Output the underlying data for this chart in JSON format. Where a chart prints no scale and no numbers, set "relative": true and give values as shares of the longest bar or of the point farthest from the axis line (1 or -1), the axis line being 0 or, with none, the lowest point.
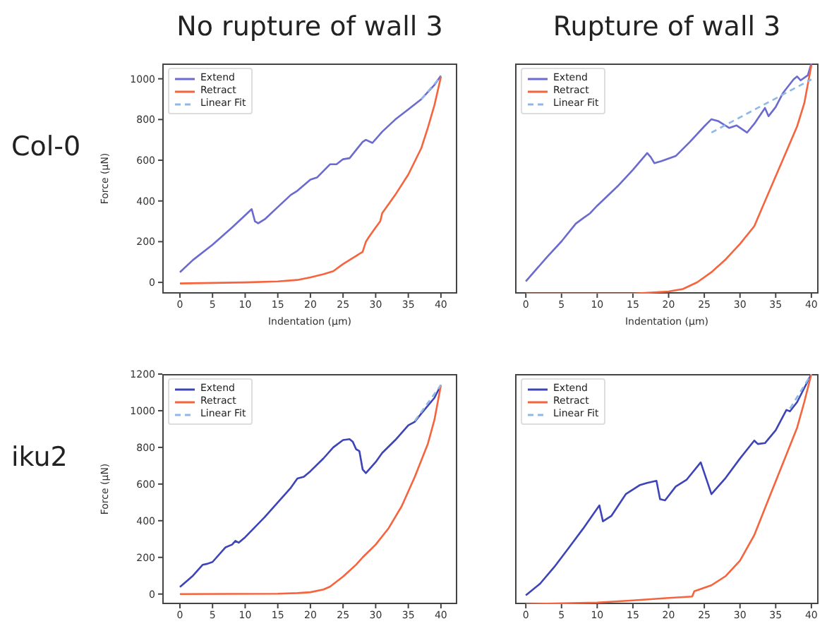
{
  "chart_data": [
    {
      "type": "line",
      "title": "No rupture of wall 3",
      "annotations": [
        "Col-0"
      ],
      "xlabel": "Indentation (μm)",
      "ylabel": "Force (μN)",
      "xlim": [
        -2.7,
        42.5
      ],
      "xticks": [
        0,
        5,
        10,
        15,
        20,
        25,
        30,
        35,
        40
      ],
      "ylim": [
        -55,
        1075
      ],
      "yticks": [
        0,
        200,
        400,
        600,
        800,
        1000
      ],
      "legend": "top left",
      "series": [
        {
          "name": "Extend",
          "color": "#6a6ad0",
          "line_style": "solid",
          "x": [
            0,
            2,
            5,
            8,
            10,
            11,
            11.5,
            12,
            13,
            15,
            17,
            18,
            20,
            21,
            23,
            24,
            25,
            26,
            28,
            28.5,
            29.5,
            31,
            33,
            35,
            37,
            39,
            40
          ],
          "values": [
            50,
            110,
            185,
            270,
            330,
            360,
            300,
            290,
            310,
            370,
            430,
            450,
            505,
            515,
            580,
            580,
            605,
            610,
            690,
            700,
            685,
            740,
            800,
            850,
            900,
            970,
            1015
          ]
        },
        {
          "name": "Retract",
          "color": "#f5643c",
          "line_style": "solid",
          "x": [
            0,
            10,
            15,
            18,
            20,
            22,
            23.5,
            25,
            27,
            28,
            28.5,
            29,
            30,
            30.7,
            31,
            33,
            35,
            37,
            38,
            39,
            40
          ],
          "values": [
            -5,
            0,
            5,
            12,
            25,
            40,
            55,
            90,
            130,
            150,
            200,
            225,
            270,
            300,
            340,
            430,
            530,
            660,
            760,
            870,
            1010
          ]
        },
        {
          "name": "Linear Fit",
          "color": "#8fb8e8",
          "line_style": "dashed",
          "x": [
            37,
            40
          ],
          "values": [
            900,
            1012
          ]
        }
      ]
    },
    {
      "type": "line",
      "title": "Rupture of wall 3",
      "xlabel": "Indentation (μm)",
      "relative": true,
      "xlim": [
        -1.5,
        41
      ],
      "xticks": [
        0,
        5,
        10,
        15,
        20,
        25,
        30,
        35,
        40
      ],
      "legend": "top left",
      "series": [
        {
          "name": "Extend",
          "color": "#6a6ad0",
          "line_style": "solid",
          "x": [
            0,
            3,
            5,
            7,
            8,
            9,
            10,
            13,
            15,
            17,
            17.5,
            18,
            19,
            21,
            23,
            25,
            26,
            27,
            28.5,
            29.5,
            31,
            32,
            33.5,
            34,
            35,
            36,
            37.5,
            38,
            38.5,
            39.5,
            40
          ],
          "values": [
            0.053,
            0.16,
            0.227,
            0.304,
            0.327,
            0.349,
            0.382,
            0.471,
            0.538,
            0.611,
            0.593,
            0.567,
            0.576,
            0.598,
            0.66,
            0.727,
            0.758,
            0.749,
            0.72,
            0.731,
            0.7,
            0.738,
            0.807,
            0.771,
            0.811,
            0.871,
            0.931,
            0.944,
            0.927,
            0.949,
            1
          ]
        },
        {
          "name": "Retract",
          "color": "#f5643c",
          "line_style": "solid",
          "x": [
            0,
            15,
            20,
            22,
            24,
            26,
            28,
            30,
            32,
            34,
            36,
            38,
            39,
            40
          ],
          "values": [
            0,
            0,
            0.009,
            0.02,
            0.049,
            0.093,
            0.149,
            0.216,
            0.293,
            0.438,
            0.582,
            0.727,
            0.827,
            0.993
          ]
        },
        {
          "name": "Linear Fit",
          "color": "#8fb8e8",
          "line_style": "dashed",
          "x": [
            26,
            40
          ],
          "values": [
            0.7,
            0.931
          ]
        }
      ]
    },
    {
      "type": "line",
      "annotations": [
        "iku2"
      ],
      "ylabel": "Force (μN)",
      "xlim": [
        -2.7,
        42.5
      ],
      "xticks": [
        0,
        5,
        10,
        15,
        20,
        25,
        30,
        35,
        40
      ],
      "ylim": [
        -55,
        1200
      ],
      "yticks": [
        0,
        200,
        400,
        600,
        800,
        1000,
        1200
      ],
      "legend": "top left",
      "series": [
        {
          "name": "Extend",
          "color": "#3c44b8",
          "line_style": "solid",
          "x": [
            0,
            2,
            3.5,
            4.2,
            5,
            7,
            8,
            8.5,
            9,
            10,
            13,
            15,
            17,
            18,
            19,
            20,
            22,
            23.5,
            25,
            26,
            26.5,
            27,
            27.5,
            28,
            28.5,
            30,
            31,
            33,
            35,
            36,
            37,
            39,
            40
          ],
          "values": [
            38,
            100,
            160,
            165,
            175,
            255,
            270,
            290,
            280,
            310,
            420,
            500,
            580,
            630,
            640,
            670,
            740,
            800,
            840,
            845,
            830,
            790,
            780,
            680,
            660,
            720,
            770,
            840,
            920,
            940,
            985,
            1070,
            1140
          ]
        },
        {
          "name": "Retract",
          "color": "#f5643c",
          "line_style": "solid",
          "x": [
            0,
            15,
            18,
            20,
            22,
            23,
            25,
            27,
            28,
            30,
            32,
            34,
            36,
            38,
            39,
            40
          ],
          "values": [
            0,
            2,
            5,
            10,
            25,
            40,
            95,
            160,
            200,
            270,
            360,
            480,
            640,
            820,
            950,
            1140
          ]
        },
        {
          "name": "Linear Fit",
          "color": "#8fb8e8",
          "line_style": "dashed",
          "x": [
            36,
            40
          ],
          "values": [
            945,
            1140
          ]
        }
      ]
    },
    {
      "type": "line",
      "relative": true,
      "xlim": [
        -1.5,
        41
      ],
      "xticks": [
        0,
        5,
        10,
        15,
        20,
        25,
        30,
        35,
        40
      ],
      "legend": "top left",
      "series": [
        {
          "name": "Extend",
          "color": "#3c44b8",
          "line_style": "solid",
          "x": [
            0,
            2,
            4,
            6,
            8,
            10,
            10.3,
            10.8,
            12,
            14,
            16,
            17,
            18.3,
            18.8,
            19.5,
            21,
            22.5,
            24.5,
            26,
            28,
            30,
            32,
            32.5,
            33.5,
            35,
            36.5,
            37,
            38,
            40
          ],
          "values": [
            0.038,
            0.089,
            0.162,
            0.244,
            0.327,
            0.416,
            0.429,
            0.36,
            0.384,
            0.478,
            0.518,
            0.527,
            0.536,
            0.456,
            0.451,
            0.511,
            0.54,
            0.616,
            0.478,
            0.549,
            0.633,
            0.711,
            0.696,
            0.7,
            0.756,
            0.844,
            0.838,
            0.878,
            1
          ]
        },
        {
          "name": "Retract",
          "color": "#f5643c",
          "line_style": "solid",
          "x": [
            0,
            10,
            15,
            20,
            23.3,
            23.6,
            26,
            28,
            30,
            32,
            34,
            36,
            38,
            39,
            40
          ],
          "values": [
            0,
            0.007,
            0.016,
            0.027,
            0.033,
            0.056,
            0.082,
            0.122,
            0.189,
            0.3,
            0.456,
            0.611,
            0.767,
            0.878,
            1
          ]
        },
        {
          "name": "Linear Fit",
          "color": "#8fb8e8",
          "line_style": "dashed",
          "x": [
            37,
            40
          ],
          "values": [
            0.85,
            1
          ]
        }
      ]
    }
  ]
}
